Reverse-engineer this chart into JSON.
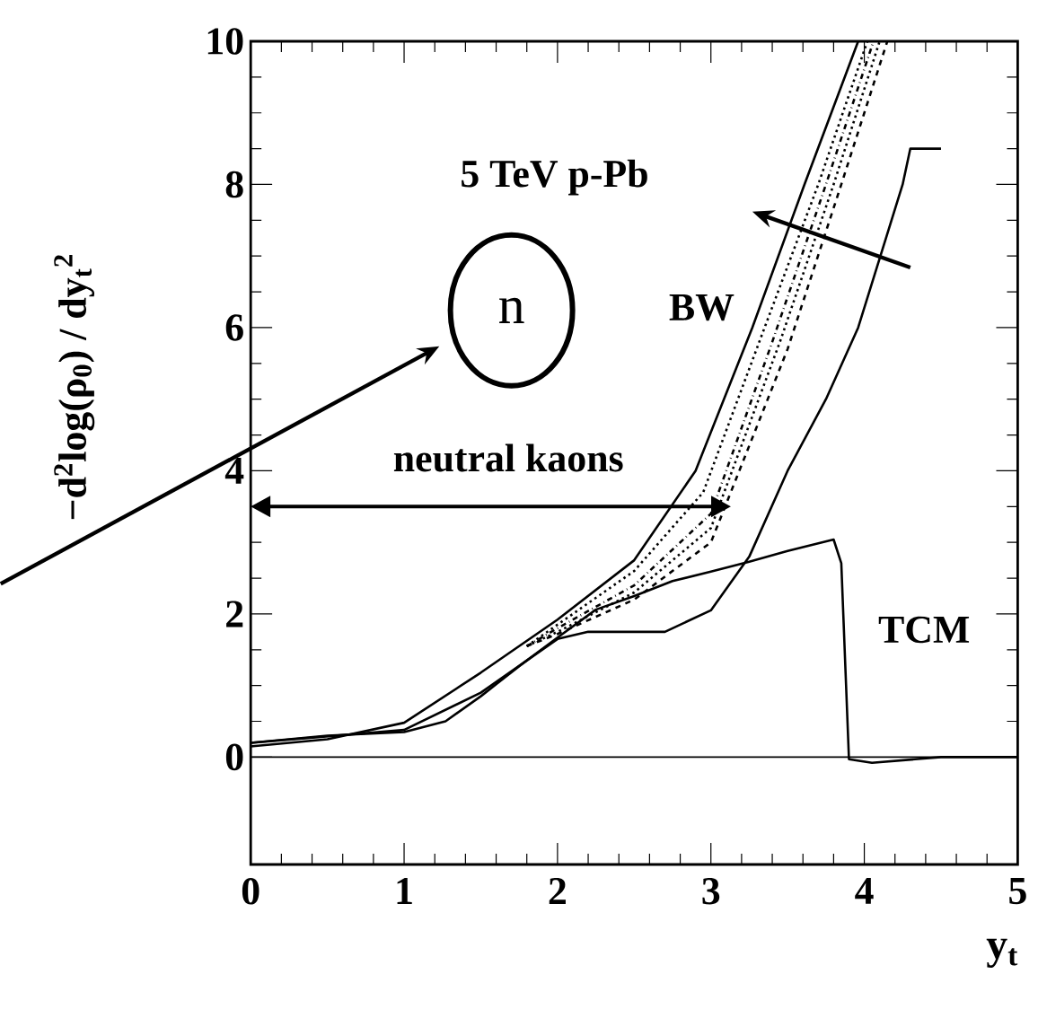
{
  "chart_data": {
    "type": "line",
    "xlabel": "y$_{t}$",
    "ylabel": "−d$^{2}$log(ρ$_{0}$) / dy$_{t}$$^{2}$",
    "xlim": [
      0,
      5
    ],
    "ylim": [
      -1.5,
      10
    ],
    "xticks": [
      0,
      1,
      2,
      3,
      4,
      5
    ],
    "yticks": [
      0,
      2,
      4,
      6,
      8,
      10
    ],
    "grid": false,
    "marker": "none",
    "series": [
      {
        "color": "#000000",
        "line_style": "solid",
        "x": [
          0,
          0.5,
          1,
          1.5,
          2,
          2.5,
          2.9,
          3.27,
          3.61,
          3.96
        ],
        "values": [
          0.15,
          0.25,
          0.48,
          1.18,
          1.92,
          2.75,
          4.0,
          6,
          8,
          10
        ]
      },
      {
        "color": "#000000",
        "line_style": "dotted",
        "x": [
          1.8,
          2,
          2.5,
          2.95,
          3.35,
          3.7,
          4.02
        ],
        "values": [
          1.55,
          1.85,
          2.6,
          3.7,
          6,
          8,
          10
        ]
      },
      {
        "color": "#000000",
        "line_style": "dashdotted",
        "x": [
          1.8,
          2,
          2.5,
          3,
          3.4,
          3.75,
          4.06
        ],
        "values": [
          1.55,
          1.8,
          2.4,
          3.4,
          5.8,
          8,
          10
        ]
      },
      {
        "color": "#000000",
        "line_style": "dotted",
        "x": [
          1.8,
          2,
          2.5,
          3,
          3.45,
          3.8,
          4.1
        ],
        "values": [
          1.55,
          1.75,
          2.3,
          3.2,
          5.8,
          8,
          10
        ]
      },
      {
        "color": "#000000",
        "line_style": "dashed",
        "x": [
          1.8,
          2,
          2.5,
          3,
          3.5,
          3.85,
          4.15
        ],
        "values": [
          1.55,
          1.72,
          2.2,
          3.0,
          5.7,
          8,
          10
        ]
      },
      {
        "color": "#000000",
        "line_style": "solid",
        "x": [
          0,
          1,
          1.5,
          2,
          2.2,
          2.7,
          3,
          3.25,
          3.5,
          3.75,
          3.96,
          4.25,
          4.3,
          4.5
        ],
        "values": [
          0.2,
          0.38,
          0.9,
          1.65,
          1.75,
          1.75,
          2.05,
          2.8,
          4,
          5,
          6,
          8,
          8.5,
          8.5
        ]
      },
      {
        "color": "#000000",
        "line_style": "solid",
        "x": [
          0,
          0.5,
          1,
          1.27,
          1.5,
          1.75,
          2,
          2.25,
          2.5,
          2.75,
          3,
          3.25,
          3.5,
          3.8,
          3.85,
          3.9,
          4.05,
          4.5,
          5
        ],
        "values": [
          0.2,
          0.3,
          0.35,
          0.5,
          0.85,
          1.27,
          1.67,
          2.06,
          2.25,
          2.46,
          2.59,
          2.73,
          2.88,
          3.04,
          2.71,
          -0.03,
          -0.08,
          0,
          0
        ]
      }
    ],
    "ref_lines": [
      {
        "axis": "y",
        "value": 0,
        "color": "#000000"
      }
    ],
    "annotations": [
      "5 TeV p-Pb",
      "n",
      "BW",
      "neutral kaons",
      "TCM"
    ]
  }
}
